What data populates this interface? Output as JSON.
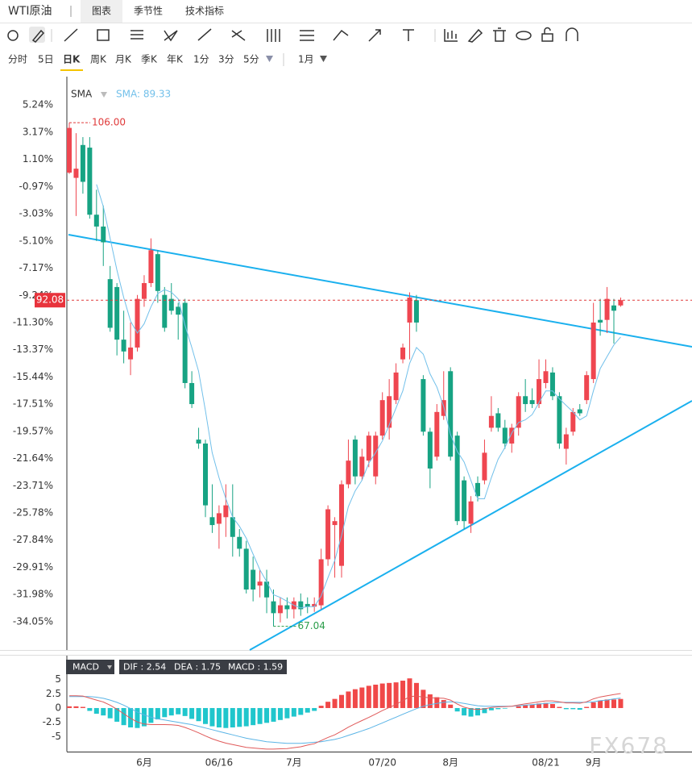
{
  "header": {
    "title": "WTI原油",
    "tabs": [
      "图表",
      "季节性",
      "技术指标"
    ]
  },
  "periods": [
    "分时",
    "5日",
    "日K",
    "周K",
    "月K",
    "季K",
    "年K",
    "1分",
    "3分",
    "5分"
  ],
  "range": "1月",
  "watermark": "FX678",
  "chart_data": [
    {
      "type": "candlestick",
      "categories": [
        null,
        null,
        null,
        null,
        null,
        null,
        null,
        null,
        null,
        null,
        null,
        "6月",
        null,
        null,
        null,
        null,
        null,
        null,
        null,
        null,
        null,
        null,
        "06/16",
        null,
        null,
        null,
        null,
        null,
        null,
        null,
        null,
        null,
        null,
        "7月",
        null,
        null,
        null,
        null,
        null,
        null,
        null,
        null,
        null,
        null,
        null,
        null,
        "07/20",
        null,
        null,
        null,
        null,
        null,
        null,
        null,
        null,
        null,
        "8月",
        null,
        null,
        null,
        null,
        null,
        null,
        null,
        null,
        null,
        null,
        null,
        null,
        null,
        "08/21",
        null,
        null,
        null,
        null,
        null,
        null,
        "9月",
        null,
        null,
        null,
        null
      ],
      "open": [
        0.1,
        -0.3,
        2.2,
        2.0,
        -3.1,
        -4.0,
        -8.0,
        -8.6,
        -12.6,
        -14.1,
        -13.2,
        -9.5,
        -8.3,
        -6.1,
        -9.2,
        -9.5,
        -10.1,
        -9.8,
        -15.9,
        -20.2,
        -20.5,
        -26.1,
        -26.6,
        -26.1,
        -26.1,
        -27.6,
        -28.5,
        -30.1,
        -31.3,
        -31.0,
        -32.5,
        -33.4,
        -32.8,
        -33.1,
        -32.5,
        -32.7,
        -32.9,
        -32.8,
        -29.3,
        -26.7,
        -29.8,
        -23.6,
        -20.2,
        -23.0,
        -21.8,
        -23.0,
        -19.9,
        -19.3,
        -17.2,
        -14.1,
        -11.3,
        -9.6,
        -15.6,
        -19.6,
        -21.5,
        -18.4,
        -15.0,
        -19.9,
        -23.3,
        -26.6,
        -23.5,
        -23.3,
        -19.3,
        -18.2,
        -19.3,
        -20.5,
        -19.3,
        -16.9,
        -17.2,
        -17.5,
        -15.9,
        -15.1,
        -16.9,
        -20.9,
        -19.6,
        -17.9,
        -17.2,
        -15.6,
        -11.1,
        -11.1,
        -10.0,
        -10.0
      ],
      "high": [
        3.9,
        3.1,
        2.8,
        2.8,
        -1.2,
        -2.4,
        -7.0,
        -8.3,
        -10.4,
        -11.3,
        -9.2,
        -7.7,
        -4.9,
        -5.8,
        -8.6,
        -8.3,
        -9.8,
        -9.5,
        -15.0,
        -19.3,
        -20.2,
        -23.6,
        -25.2,
        -23.6,
        -23.6,
        -27.0,
        -27.9,
        -29.1,
        -30.1,
        -30.1,
        -31.6,
        -32.2,
        -32.2,
        -32.2,
        -31.9,
        -32.2,
        -32.2,
        -28.5,
        -25.2,
        -26.1,
        -23.3,
        -20.2,
        -19.9,
        -20.9,
        -19.6,
        -19.6,
        -16.6,
        -15.6,
        -14.4,
        -12.9,
        -9.0,
        -9.2,
        -15.3,
        -19.3,
        -17.5,
        -15.0,
        -14.7,
        -19.6,
        -23.0,
        -24.5,
        -23.0,
        -20.2,
        -16.9,
        -17.8,
        -18.7,
        -19.0,
        -16.6,
        -15.6,
        -16.3,
        -14.1,
        -14.1,
        -14.7,
        -16.6,
        -19.3,
        -17.8,
        -17.5,
        -15.0,
        -9.8,
        -9.5,
        -8.6,
        -9.5,
        -9.4
      ],
      "low": [
        0.0,
        -3.2,
        -1.5,
        -3.4,
        -5.1,
        -7.0,
        -12.0,
        -13.8,
        -14.4,
        -15.3,
        -13.5,
        -10.1,
        -8.6,
        -9.8,
        -12.0,
        -10.7,
        -12.6,
        -16.3,
        -17.8,
        -20.9,
        -26.1,
        -27.3,
        -28.5,
        -27.6,
        -29.1,
        -29.1,
        -31.9,
        -32.5,
        -32.2,
        -33.4,
        -34.4,
        -34.1,
        -33.8,
        -33.8,
        -33.6,
        -33.4,
        -33.3,
        -33.1,
        -29.8,
        -30.7,
        -30.7,
        -23.9,
        -23.6,
        -23.3,
        -22.3,
        -23.6,
        -20.2,
        -20.2,
        -17.5,
        -14.4,
        -14.1,
        -12.0,
        -19.9,
        -23.9,
        -21.8,
        -18.7,
        -21.8,
        -26.7,
        -27.0,
        -27.3,
        -24.9,
        -23.6,
        -19.6,
        -19.6,
        -20.9,
        -21.2,
        -19.9,
        -18.1,
        -17.8,
        -17.8,
        -16.3,
        -17.2,
        -20.9,
        -22.1,
        -19.9,
        -18.4,
        -17.5,
        -15.9,
        -12.3,
        -12.1,
        -12.9,
        -10.1
      ],
      "close": [
        3.5,
        0.4,
        -0.6,
        -3.1,
        -4.0,
        -5.2,
        -11.7,
        -12.6,
        -13.5,
        -13.2,
        -9.5,
        -8.3,
        -5.8,
        -8.9,
        -11.7,
        -10.4,
        -10.7,
        -15.9,
        -17.5,
        -20.5,
        -25.2,
        -26.7,
        -25.8,
        -25.2,
        -27.6,
        -28.5,
        -31.6,
        -31.6,
        -31.0,
        -32.2,
        -33.4,
        -32.8,
        -33.1,
        -32.5,
        -33.1,
        -32.9,
        -32.7,
        -29.3,
        -25.5,
        -26.4,
        -23.6,
        -21.8,
        -23.0,
        -21.5,
        -19.9,
        -19.9,
        -17.2,
        -16.9,
        -15.1,
        -13.2,
        -9.4,
        -11.3,
        -19.6,
        -22.4,
        -18.1,
        -17.2,
        -21.5,
        -26.4,
        -26.4,
        -24.9,
        -24.5,
        -21.2,
        -18.4,
        -19.3,
        -20.5,
        -19.3,
        -16.9,
        -17.5,
        -17.5,
        -15.6,
        -15.0,
        -16.9,
        -20.5,
        -19.8,
        -18.1,
        -18.2,
        -15.3,
        -11.3,
        -11.3,
        -9.5,
        -10.4,
        -9.6
      ],
      "up_color": "#ef4650",
      "down_color": "#17a383",
      "sma": {
        "name": "SMA",
        "label": "SMA: 89.33",
        "color": "#72c0ea",
        "values": [
          null,
          null,
          null,
          null,
          -0.8,
          -2.5,
          -4.9,
          -7.3,
          -9.4,
          -11.2,
          -12.1,
          -11.4,
          -10.1,
          -9.1,
          -8.8,
          -9.0,
          -9.5,
          -11.5,
          -13.2,
          -15.0,
          -18.0,
          -21.2,
          -23.1,
          -24.7,
          -26.1,
          -26.8,
          -27.7,
          -28.9,
          -30.1,
          -31.0,
          -32.0,
          -32.2,
          -32.5,
          -32.8,
          -33.0,
          -32.9,
          -32.9,
          -32.1,
          -30.7,
          -29.4,
          -27.5,
          -25.3,
          -24.1,
          -23.3,
          -22.0,
          -21.2,
          -20.3,
          -19.1,
          -17.8,
          -16.5,
          -14.4,
          -13.2,
          -13.7,
          -15.2,
          -16.2,
          -17.7,
          -19.8,
          -21.1,
          -21.9,
          -23.3,
          -24.7,
          -24.7,
          -23.1,
          -21.7,
          -20.8,
          -19.7,
          -18.9,
          -18.7,
          -18.3,
          -17.4,
          -16.5,
          -16.5,
          -17.1,
          -17.6,
          -18.1,
          -18.7,
          -18.4,
          -16.5,
          -14.8,
          -13.9,
          -13.0,
          -12.4
        ]
      },
      "annotations": {
        "high": "106.00",
        "low": "67.04",
        "last": "92.08"
      },
      "ylim": [
        -36.2,
        7.4
      ],
      "yticks": [
        {
          "value": 5.24,
          "label": "5.24%"
        },
        {
          "value": 3.17,
          "label": "3.17%"
        },
        {
          "value": 1.1,
          "label": "1.10%"
        },
        {
          "value": -0.97,
          "label": "-0.97%"
        },
        {
          "value": -3.03,
          "label": "-3.03%"
        },
        {
          "value": -5.1,
          "label": "-5.10%"
        },
        {
          "value": -7.17,
          "label": "-7.17%"
        },
        {
          "value": -9.24,
          "label": "-9.24%"
        },
        {
          "value": -11.3,
          "label": "-11.30%"
        },
        {
          "value": -13.37,
          "label": "-13.37%"
        },
        {
          "value": -15.44,
          "label": "-15.44%"
        },
        {
          "value": -17.51,
          "label": "-17.51%"
        },
        {
          "value": -19.57,
          "label": "-19.57%"
        },
        {
          "value": -21.64,
          "label": "-21.64%"
        },
        {
          "value": -23.71,
          "label": "-23.71%"
        },
        {
          "value": -25.78,
          "label": "-25.78%"
        },
        {
          "value": -27.84,
          "label": "-27.84%"
        },
        {
          "value": -29.91,
          "label": "-29.91%"
        },
        {
          "value": -31.98,
          "label": "-31.98%"
        },
        {
          "value": -34.05,
          "label": "-34.05%"
        }
      ]
    },
    {
      "type": "macd",
      "name": "MACD",
      "legend": [
        "DIF : 2.54",
        "DEA : 1.75",
        "MACD : 1.59"
      ],
      "histogram": [
        0.3,
        0.3,
        0.2,
        -0.5,
        -1.0,
        -1.3,
        -1.8,
        -2.4,
        -3.0,
        -3.4,
        -3.5,
        -3.2,
        -2.6,
        -2.0,
        -1.6,
        -1.3,
        -1.1,
        -1.4,
        -1.9,
        -2.3,
        -2.8,
        -3.2,
        -3.4,
        -3.5,
        -3.4,
        -3.3,
        -3.2,
        -3.0,
        -2.8,
        -2.6,
        -2.4,
        -2.1,
        -1.8,
        -1.5,
        -1.2,
        -0.8,
        -0.5,
        0.4,
        1.1,
        1.6,
        2.3,
        2.9,
        3.3,
        3.6,
        3.9,
        4.1,
        4.3,
        4.4,
        4.5,
        4.8,
        5.2,
        4.4,
        3.2,
        2.4,
        1.9,
        1.4,
        0.6,
        -0.6,
        -1.3,
        -1.5,
        -1.3,
        -0.9,
        -0.4,
        -0.2,
        -0.1,
        0.0,
        0.3,
        0.5,
        0.6,
        0.8,
        0.9,
        0.7,
        0.2,
        -0.2,
        -0.2,
        -0.3,
        0.2,
        1.0,
        1.3,
        1.5,
        1.5,
        1.59
      ],
      "dif": {
        "color": "#e05a5a",
        "values": [
          2.15,
          2.15,
          2.1,
          1.75,
          1.4,
          1.05,
          0.5,
          -0.2,
          -1.0,
          -1.8,
          -2.45,
          -2.8,
          -2.9,
          -2.9,
          -2.9,
          -2.95,
          -3.05,
          -3.4,
          -3.85,
          -4.35,
          -4.9,
          -5.4,
          -5.8,
          -6.15,
          -6.4,
          -6.65,
          -6.9,
          -7.0,
          -7.1,
          -7.2,
          -7.2,
          -7.15,
          -7.1,
          -6.95,
          -6.8,
          -6.5,
          -6.25,
          -5.7,
          -5.15,
          -4.7,
          -4.05,
          -3.35,
          -2.75,
          -2.2,
          -1.65,
          -1.05,
          -0.45,
          0.1,
          0.65,
          1.3,
          2.0,
          2.1,
          1.9,
          1.8,
          1.75,
          1.7,
          1.4,
          0.7,
          0.15,
          -0.15,
          -0.25,
          -0.15,
          0.1,
          0.2,
          0.25,
          0.3,
          0.55,
          0.75,
          0.9,
          1.1,
          1.25,
          1.25,
          1.1,
          0.9,
          0.9,
          0.85,
          1.1,
          1.6,
          1.95,
          2.15,
          2.35,
          2.54
        ]
      },
      "dea": {
        "color": "#5ab4e6",
        "values": [
          2.0,
          2.0,
          2.0,
          2.0,
          1.9,
          1.7,
          1.4,
          1.0,
          0.5,
          -0.1,
          -0.7,
          -1.2,
          -1.6,
          -1.9,
          -2.1,
          -2.3,
          -2.5,
          -2.7,
          -2.9,
          -3.2,
          -3.5,
          -3.8,
          -4.1,
          -4.4,
          -4.7,
          -5.0,
          -5.3,
          -5.5,
          -5.7,
          -5.9,
          -6.0,
          -6.1,
          -6.2,
          -6.2,
          -6.2,
          -6.1,
          -6.0,
          -5.9,
          -5.7,
          -5.5,
          -5.2,
          -4.8,
          -4.4,
          -4.0,
          -3.6,
          -3.1,
          -2.6,
          -2.1,
          -1.6,
          -1.1,
          -0.6,
          -0.1,
          0.3,
          0.6,
          0.8,
          1.0,
          1.1,
          1.0,
          0.8,
          0.6,
          0.4,
          0.3,
          0.3,
          0.3,
          0.3,
          0.3,
          0.4,
          0.5,
          0.6,
          0.7,
          0.8,
          0.9,
          1.0,
          1.0,
          1.0,
          1.0,
          1.0,
          1.1,
          1.3,
          1.4,
          1.6,
          1.75
        ]
      },
      "up_color": "#f04848",
      "down_color": "#20c6cc",
      "ylim": [
        -7.5,
        6.5
      ],
      "yticks": [
        5,
        2.5,
        0,
        -2.5,
        -5
      ]
    }
  ]
}
